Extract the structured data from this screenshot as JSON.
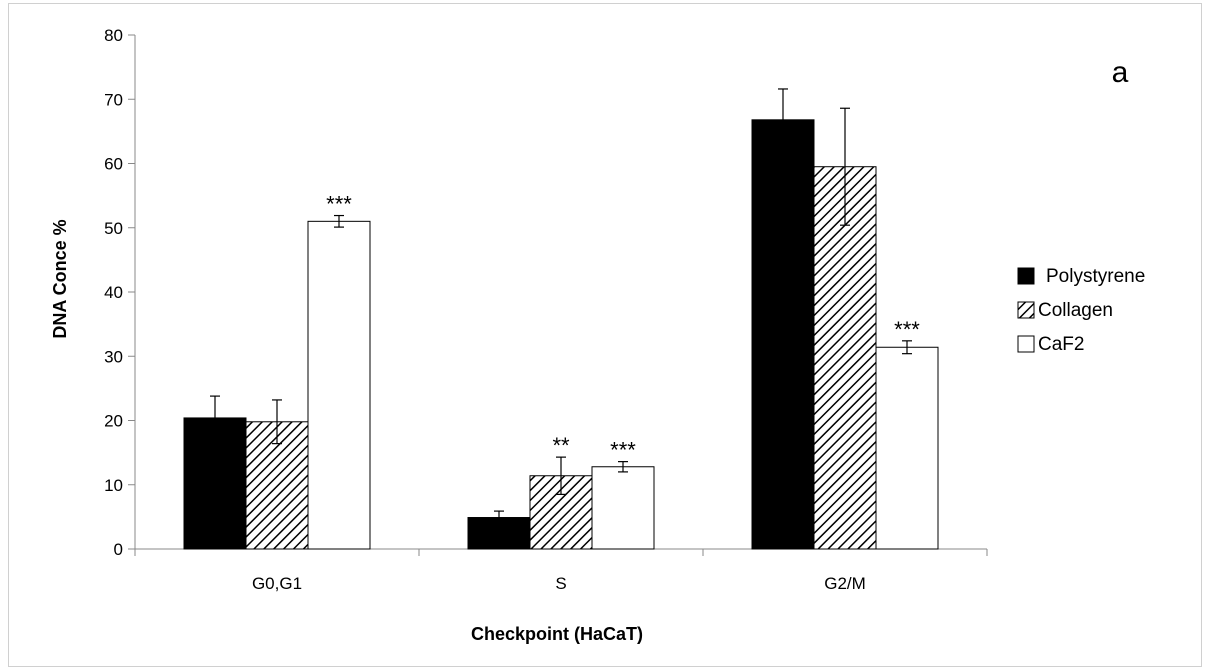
{
  "chart_data": {
    "type": "bar",
    "panel_label": "a",
    "xlabel": "Checkpoint (HaCaT)",
    "ylabel": "DNA Conce %",
    "ylim": [
      0,
      80
    ],
    "yticks": [
      0,
      10,
      20,
      30,
      40,
      50,
      60,
      70,
      80
    ],
    "categories": [
      "G0,G1",
      "S",
      "G2/M"
    ],
    "legend_position": "right",
    "series": [
      {
        "name": "Polystyrene",
        "pattern": "solid-black",
        "color": "#000000",
        "values": [
          20.4,
          4.9,
          66.8
        ],
        "errors": [
          3.4,
          1.0,
          4.8
        ],
        "significance": [
          "",
          "",
          ""
        ]
      },
      {
        "name": "Collagen",
        "pattern": "diagonal-hatch",
        "color": "#000000",
        "values": [
          19.8,
          11.4,
          59.5
        ],
        "errors": [
          3.4,
          2.9,
          9.1
        ],
        "significance": [
          "",
          "**",
          ""
        ]
      },
      {
        "name": "CaF2",
        "pattern": "white",
        "color": "#ffffff",
        "values": [
          51.0,
          12.8,
          31.4
        ],
        "errors": [
          0.9,
          0.8,
          1.0
        ],
        "significance": [
          "***",
          "***",
          "***"
        ]
      }
    ]
  }
}
